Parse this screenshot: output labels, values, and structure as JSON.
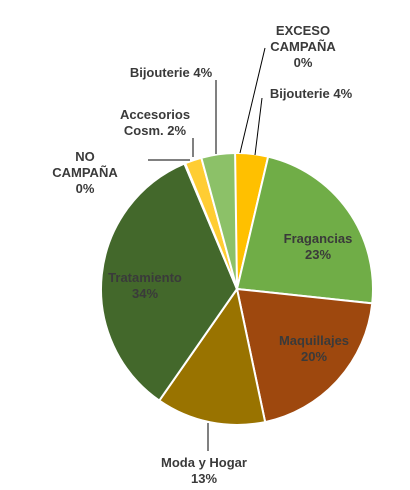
{
  "chart_data": {
    "type": "pie",
    "title": "",
    "slices": [
      {
        "name": "EXCESO CAMPAÑA",
        "value": 0,
        "label": [
          "EXCESO",
          "CAMPAÑA",
          "0%"
        ],
        "color": "#FFC000"
      },
      {
        "name": "Bijouterie",
        "value": 4,
        "label": [
          "Bijouterie 4%"
        ],
        "color": "#FFC000"
      },
      {
        "name": "Fragancias",
        "value": 23,
        "label": [
          "Fragancias",
          "23%"
        ],
        "color": "#70AD47"
      },
      {
        "name": "Maquillajes",
        "value": 20,
        "label": [
          "Maquillajes",
          "20%"
        ],
        "color": "#9E480E"
      },
      {
        "name": "Moda y Hogar",
        "value": 13,
        "label": [
          "Moda y Hogar",
          "13%"
        ],
        "color": "#997300"
      },
      {
        "name": "Tratamiento",
        "value": 34,
        "label": [
          "Tratamiento",
          "34%"
        ],
        "color": "#43682B"
      },
      {
        "name": "NO CAMPAÑA",
        "value": 0,
        "label": [
          "NO",
          "CAMPAÑA",
          "0%"
        ],
        "color": "#43682B"
      },
      {
        "name": "Accesorios Cosm.",
        "value": 2,
        "label": [
          "Accesorios",
          "Cosm. 2%"
        ],
        "color": "#FFCD33"
      },
      {
        "name": "Bijouterie",
        "value": 4,
        "label": [
          "Bijouterie 4%"
        ],
        "color": "#8CC168"
      }
    ],
    "legend": "none"
  }
}
